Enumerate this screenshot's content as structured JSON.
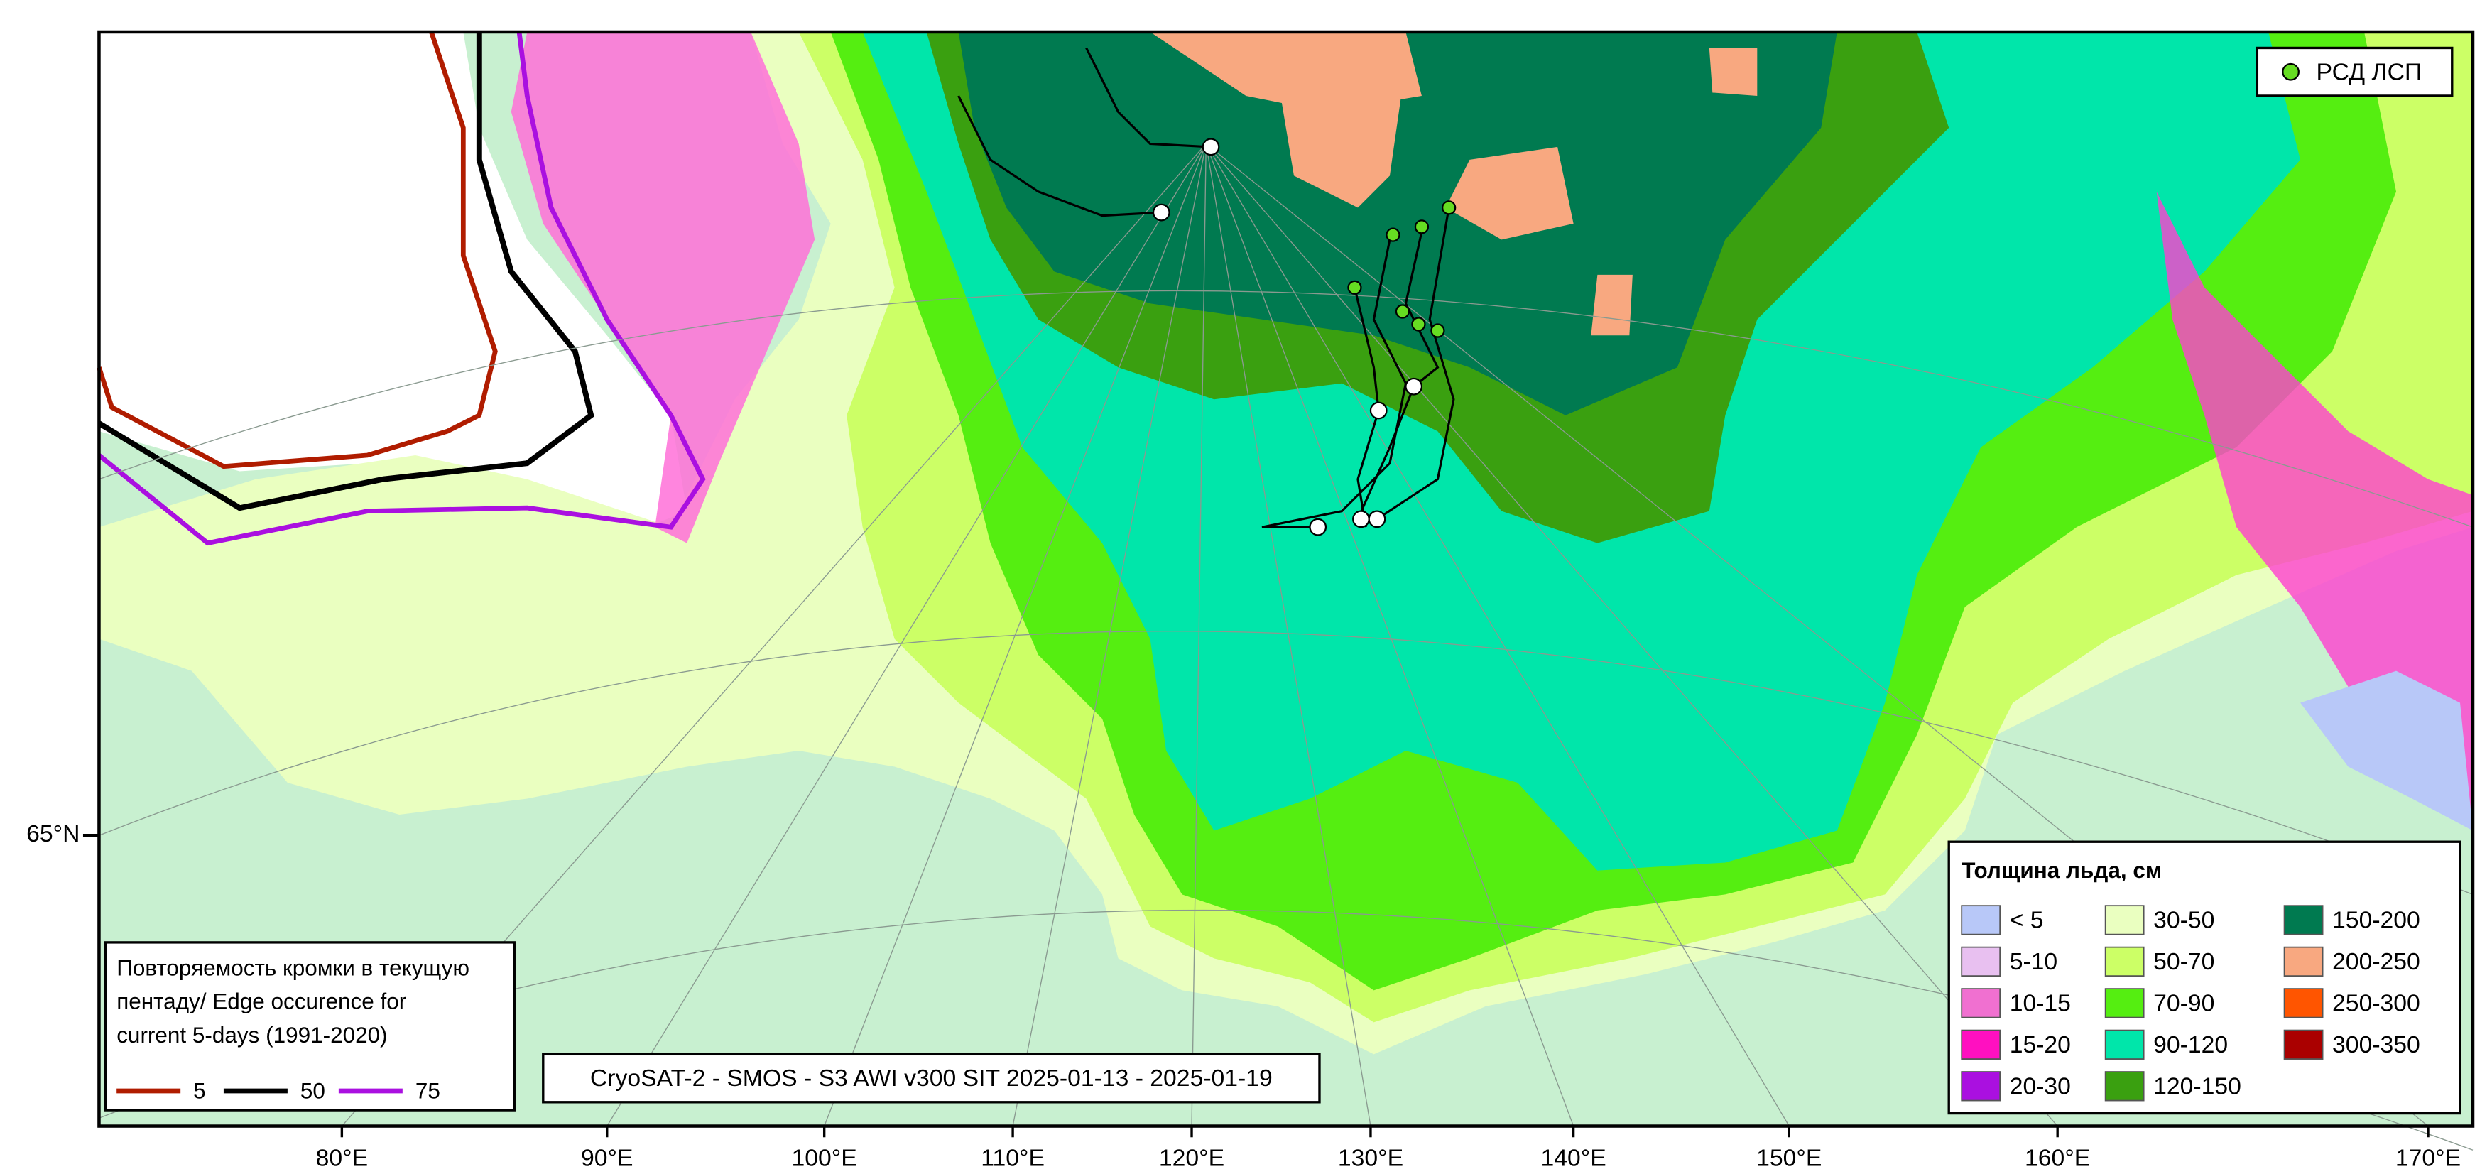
{
  "map": {
    "lon_labels": [
      "80°E",
      "90°E",
      "100°E",
      "110°E",
      "120°E",
      "130°E",
      "140°E",
      "150°E",
      "160°E",
      "170°E"
    ],
    "lat_labels": [
      "65°N"
    ],
    "source": "CryoSAT-2 - SMOS - S3 AWI v300 SIT 2025-01-13 - 2025-01-19",
    "points_legend": {
      "label": "РСД ЛСП",
      "color": "#66dd22"
    },
    "thickness_legend": {
      "title": "Толщина льда, см",
      "items": [
        {
          "label": "< 5",
          "color": "#b8c8f8"
        },
        {
          "label": "5-10",
          "color": "#e8c0f0"
        },
        {
          "label": "10-15",
          "color": "#f070d0"
        },
        {
          "label": "15-20",
          "color": "#ff10c0"
        },
        {
          "label": "20-30",
          "color": "#aa10e0"
        },
        {
          "label": "30-50",
          "color": "#eaffc0"
        },
        {
          "label": "50-70",
          "color": "#ccff66"
        },
        {
          "label": "70-90",
          "color": "#55ee11"
        },
        {
          "label": "90-120",
          "color": "#00e6aa"
        },
        {
          "label": "120-150",
          "color": "#3aa010"
        },
        {
          "label": "150-200",
          "color": "#007a50"
        },
        {
          "label": "200-250",
          "color": "#f8a880"
        },
        {
          "label": "250-300",
          "color": "#ff5500"
        },
        {
          "label": "300-350",
          "color": "#aa0000"
        }
      ]
    },
    "edge_legend": {
      "title_lines": [
        "Повторяемость кромки в текущую",
        "пентаду/ Edge occurence for",
        "current 5-days (1991-2020)"
      ],
      "items": [
        {
          "value": 5,
          "color": "#b01c00"
        },
        {
          "value": 50,
          "color": "#000000"
        },
        {
          "value": 75,
          "color": "#aa10e0"
        }
      ]
    }
  }
}
